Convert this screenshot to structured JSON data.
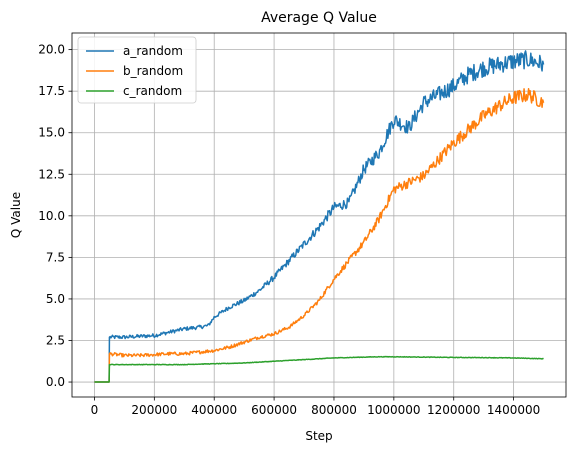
{
  "chart_data": {
    "type": "line",
    "title": "Average Q Value",
    "xlabel": "Step",
    "ylabel": "Q Value",
    "xlim": [
      -75000,
      1575000
    ],
    "ylim": [
      -0.9,
      21.0
    ],
    "xticks": [
      0,
      200000,
      400000,
      600000,
      800000,
      1000000,
      1200000,
      1400000
    ],
    "xtick_labels": [
      "0",
      "200000",
      "400000",
      "600000",
      "800000",
      "1000000",
      "1200000",
      "1400000"
    ],
    "yticks": [
      0.0,
      2.5,
      5.0,
      7.5,
      10.0,
      12.5,
      15.0,
      17.5,
      20.0
    ],
    "ytick_labels": [
      "0.0",
      "2.5",
      "5.0",
      "7.5",
      "10.0",
      "12.5",
      "15.0",
      "17.5",
      "20.0"
    ],
    "grid": true,
    "legend_position": "top-left",
    "series": [
      {
        "name": "a_random",
        "color": "#1f77b4",
        "x": [
          0,
          49000,
          50000,
          100000,
          150000,
          200000,
          250000,
          300000,
          350000,
          380000,
          400000,
          450000,
          500000,
          550000,
          600000,
          650000,
          700000,
          750000,
          800000,
          850000,
          900000,
          950000,
          1000000,
          1050000,
          1100000,
          1150000,
          1200000,
          1250000,
          1300000,
          1350000,
          1400000,
          1450000,
          1500000
        ],
        "y": [
          0.0,
          0.0,
          2.7,
          2.7,
          2.75,
          2.8,
          3.0,
          3.2,
          3.3,
          3.4,
          3.9,
          4.5,
          4.9,
          5.5,
          6.3,
          7.3,
          8.3,
          9.3,
          10.5,
          10.8,
          12.8,
          13.8,
          15.8,
          15.3,
          16.8,
          17.3,
          17.8,
          18.5,
          18.9,
          19.1,
          19.3,
          19.4,
          19.1
        ]
      },
      {
        "name": "b_random",
        "color": "#ff7f0e",
        "x": [
          0,
          49000,
          50000,
          100000,
          150000,
          200000,
          250000,
          300000,
          350000,
          400000,
          450000,
          500000,
          550000,
          600000,
          650000,
          700000,
          750000,
          800000,
          850000,
          900000,
          950000,
          1000000,
          1050000,
          1100000,
          1150000,
          1200000,
          1250000,
          1300000,
          1350000,
          1400000,
          1450000,
          1500000
        ],
        "y": [
          0.0,
          0.0,
          1.7,
          1.6,
          1.6,
          1.65,
          1.7,
          1.7,
          1.8,
          1.9,
          2.1,
          2.4,
          2.7,
          2.9,
          3.3,
          4.0,
          4.9,
          6.2,
          7.3,
          8.4,
          9.8,
          11.6,
          12.0,
          12.4,
          13.4,
          14.4,
          15.2,
          16.0,
          16.6,
          17.1,
          17.3,
          16.8
        ]
      },
      {
        "name": "c_random",
        "color": "#2ca02c",
        "x": [
          0,
          49000,
          50000,
          100000,
          150000,
          200000,
          250000,
          300000,
          350000,
          400000,
          450000,
          500000,
          600000,
          700000,
          800000,
          900000,
          950000,
          1000000,
          1100000,
          1200000,
          1300000,
          1400000,
          1500000
        ],
        "y": [
          0.0,
          0.0,
          1.05,
          1.05,
          1.05,
          1.05,
          1.05,
          1.05,
          1.08,
          1.1,
          1.12,
          1.15,
          1.25,
          1.35,
          1.45,
          1.5,
          1.52,
          1.52,
          1.5,
          1.48,
          1.47,
          1.45,
          1.4
        ]
      }
    ]
  }
}
